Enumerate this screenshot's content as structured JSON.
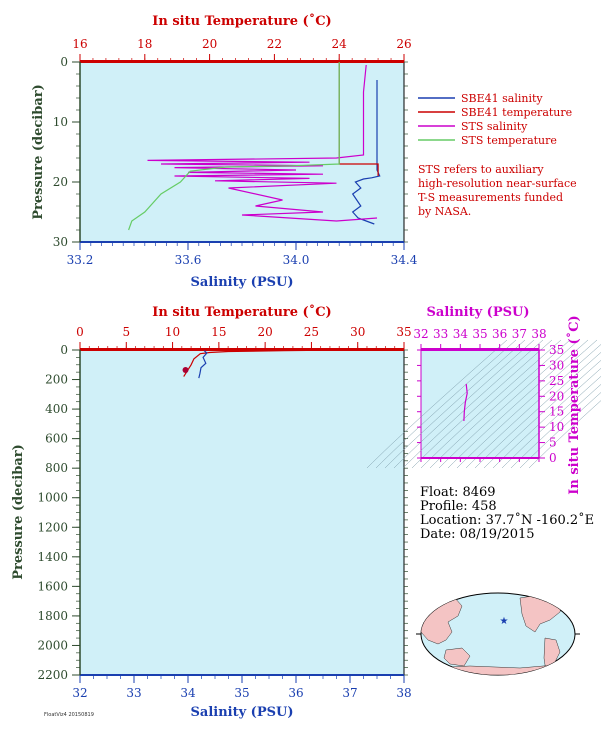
{
  "chart_data": [
    {
      "type": "line",
      "panel": "top-profile",
      "top_axis_label": "In situ Temperature (˚C)",
      "bottom_axis_label": "Salinity (PSU)",
      "left_axis_label": "Pressure (decibar)",
      "temperature_ticks": [
        "16",
        "18",
        "20",
        "22",
        "24",
        "26"
      ],
      "temperature_range": [
        16,
        26
      ],
      "salinity_ticks": [
        "33.2",
        "33.6",
        "34.0",
        "34.4"
      ],
      "salinity_range": [
        33.2,
        34.4
      ],
      "pressure_ticks": [
        "0",
        "10",
        "20",
        "30"
      ],
      "pressure_range": [
        0,
        30
      ],
      "series": [
        {
          "name": "SBE41 salinity",
          "color": "#1a3fb0",
          "axis": "salinity",
          "points": [
            [
              34.3,
              3
            ],
            [
              34.3,
              18
            ],
            [
              34.31,
              19
            ],
            [
              34.28,
              19.3
            ],
            [
              34.25,
              19.5
            ],
            [
              34.22,
              20
            ],
            [
              34.24,
              21
            ],
            [
              34.21,
              22
            ],
            [
              34.24,
              24
            ],
            [
              34.21,
              25
            ],
            [
              34.23,
              26
            ],
            [
              34.26,
              26.5
            ],
            [
              34.29,
              27
            ]
          ]
        },
        {
          "name": "SBE41 temperature",
          "color": "#cc0000",
          "axis": "temperature",
          "points": [
            [
              24.0,
              0
            ],
            [
              24.0,
              17
            ],
            [
              25.2,
              17
            ],
            [
              25.2,
              19
            ]
          ]
        },
        {
          "name": "STS salinity",
          "color": "#cc00cc",
          "axis": "salinity",
          "points": [
            [
              34.26,
              0.5
            ],
            [
              34.25,
              5
            ],
            [
              34.25,
              15.5
            ],
            [
              34.15,
              16
            ],
            [
              33.45,
              16.4
            ],
            [
              34.05,
              16.7
            ],
            [
              33.5,
              17
            ],
            [
              34.1,
              17.3
            ],
            [
              33.55,
              17.6
            ],
            [
              34.0,
              18
            ],
            [
              33.6,
              18.4
            ],
            [
              34.1,
              18.7
            ],
            [
              33.55,
              19
            ],
            [
              34.05,
              19.4
            ],
            [
              33.7,
              19.8
            ],
            [
              34.15,
              20.2
            ],
            [
              33.75,
              21
            ],
            [
              33.95,
              23
            ],
            [
              33.85,
              24
            ],
            [
              34.1,
              25
            ],
            [
              33.8,
              25.5
            ],
            [
              34.15,
              26.5
            ],
            [
              34.3,
              26
            ]
          ]
        },
        {
          "name": "STS temperature",
          "color": "#66cc66",
          "axis": "temperature",
          "points": [
            [
              24.0,
              0
            ],
            [
              24.0,
              14
            ],
            [
              24.0,
              17
            ],
            [
              22.5,
              17.3
            ],
            [
              20.5,
              17.5
            ],
            [
              19.4,
              18.2
            ],
            [
              19.1,
              20
            ],
            [
              18.5,
              22
            ],
            [
              18.0,
              25
            ],
            [
              17.6,
              26.5
            ],
            [
              17.5,
              28
            ]
          ]
        }
      ],
      "legend": [
        "SBE41 salinity",
        "SBE41 temperature",
        "STS salinity",
        "STS temperature"
      ],
      "legend_placement": "right",
      "note_lines": [
        "STS refers to auxiliary",
        "high-resolution near-surface",
        "T-S measurements funded",
        "by NASA."
      ]
    },
    {
      "type": "line",
      "panel": "full-profile",
      "top_axis_label": "In situ Temperature (˚C)",
      "bottom_axis_label": "Salinity (PSU)",
      "left_axis_label": "Pressure (decibar)",
      "temperature_ticks": [
        "0",
        "5",
        "10",
        "15",
        "20",
        "25",
        "30",
        "35"
      ],
      "temperature_range": [
        0,
        35
      ],
      "salinity_ticks": [
        "32",
        "33",
        "34",
        "35",
        "36",
        "37",
        "38"
      ],
      "salinity_range": [
        32,
        38
      ],
      "pressure_ticks": [
        "0",
        "200",
        "400",
        "600",
        "800",
        "1000",
        "1200",
        "1400",
        "1600",
        "1800",
        "2000",
        "2200"
      ],
      "pressure_range": [
        0,
        2200
      ],
      "series": [
        {
          "color": "#cc0000",
          "axis": "temperature",
          "points": [
            [
              24.5,
              3
            ],
            [
              22,
              5
            ],
            [
              16,
              10
            ],
            [
              14,
              17
            ],
            [
              13,
              25
            ],
            [
              12.3,
              60
            ],
            [
              12,
              100
            ],
            [
              11.6,
              140
            ],
            [
              11.2,
              180
            ]
          ]
        },
        {
          "color": "#1a3fb0",
          "axis": "salinity",
          "points": [
            [
              34.3,
              5
            ],
            [
              34.35,
              20
            ],
            [
              34.28,
              50
            ],
            [
              34.33,
              90
            ],
            [
              34.24,
              120
            ],
            [
              34.22,
              160
            ],
            [
              34.2,
              190
            ]
          ]
        }
      ],
      "marker": {
        "temperature": 11.4,
        "pressure": 135
      }
    },
    {
      "type": "scatter",
      "panel": "ts-diagram",
      "top_axis_label": "Salinity (PSU)",
      "right_axis_label": "In situ Temperature (˚C)",
      "salinity_ticks": [
        "32",
        "33",
        "34",
        "35",
        "36",
        "37",
        "38"
      ],
      "salinity_range": [
        32,
        38
      ],
      "temperature_ticks": [
        "0",
        "5",
        "10",
        "15",
        "20",
        "25",
        "30",
        "35"
      ],
      "temperature_range": [
        0,
        35
      ],
      "points": [
        [
          34.3,
          24
        ],
        [
          34.35,
          21
        ],
        [
          34.25,
          18
        ],
        [
          34.2,
          15
        ],
        [
          34.18,
          12
        ]
      ]
    }
  ],
  "info": {
    "float": "Float:  8469",
    "profile": "Profile:  458",
    "location": "Location:  37.7˚N  -160.2˚E",
    "date": "Date:  08/19/2015"
  },
  "map": {
    "marker_symbol": "★"
  },
  "footer_stamp": "FloatViz4 20150819",
  "colors": {
    "plot_bg": "#d0f0f8",
    "temperature": "#cc0000",
    "salinity": "#1a3fb0",
    "pressure": "#2e4b2e",
    "ts_axis": "#cc00cc",
    "map_land": "#f4c4c4",
    "map_ocean": "#d0f0f8"
  }
}
